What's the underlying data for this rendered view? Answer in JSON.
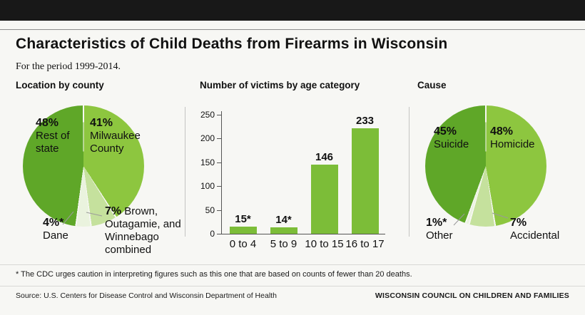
{
  "header": {
    "title": "Characteristics of Child Deaths from Firearms in Wisconsin",
    "subtitle": "For the period 1999-2014."
  },
  "footer": {
    "footnote": "* The CDC urges caution in interpreting figures such as this one that are based on counts of fewer than 20 deaths.",
    "source": "Source: U.S. Centers for Disease Control and Wisconsin Department of Health",
    "organization": "WISCONSIN COUNCIL ON CHILDREN AND FAMILIES"
  },
  "colors": {
    "top_bar": "#181818",
    "dark_green": "#5fa728",
    "medium_green": "#8dc63f",
    "light_green": "#c5e19d",
    "pale_green": "#eaf3de",
    "bar_green": "#7cbd38"
  },
  "chart_data": [
    {
      "type": "pie",
      "title": "Location by county",
      "slice_order": "clockwise_from_top",
      "slices": [
        {
          "label": "Milwaukee County",
          "pct_label": "41%",
          "value": 41,
          "color_key": "medium_green"
        },
        {
          "label": "Brown, Outagamie, and Winnebago combined",
          "pct_label": "7%",
          "value": 7,
          "color_key": "light_green"
        },
        {
          "label": "Dane",
          "pct_label": "4%*",
          "value": 4,
          "color_key": "pale_green"
        },
        {
          "label": "Rest of state",
          "pct_label": "48%",
          "value": 48,
          "color_key": "dark_green"
        }
      ]
    },
    {
      "type": "bar",
      "title": "Number of victims by age category",
      "categories": [
        "0 to 4",
        "5 to 9",
        "10 to 15",
        "16 to 17"
      ],
      "values": [
        15,
        14,
        146,
        233
      ],
      "value_labels": [
        "15*",
        "14*",
        "146",
        "233"
      ],
      "ylim": [
        0,
        250
      ],
      "yticks": [
        0,
        50,
        100,
        150,
        200,
        250
      ],
      "grid": false,
      "legend": false
    },
    {
      "type": "pie",
      "title": "Cause",
      "slice_order": "clockwise_from_top",
      "slices": [
        {
          "label": "Homicide",
          "pct_label": "48%",
          "value": 48,
          "color_key": "medium_green"
        },
        {
          "label": "Accidental",
          "pct_label": "7%",
          "value": 7,
          "color_key": "light_green"
        },
        {
          "label": "Other",
          "pct_label": "1%*",
          "value": 1,
          "color_key": "pale_green"
        },
        {
          "label": "Suicide",
          "pct_label": "45%",
          "value": 45,
          "color_key": "dark_green"
        }
      ]
    }
  ]
}
